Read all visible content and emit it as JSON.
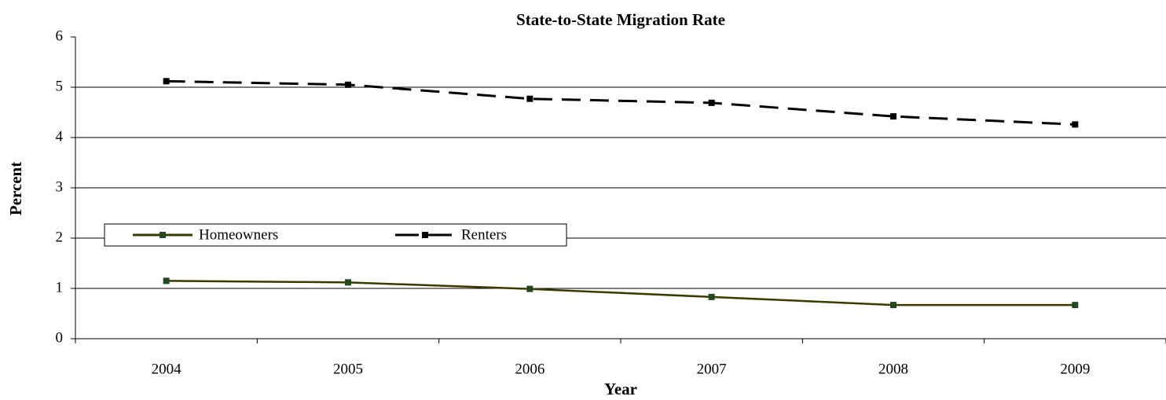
{
  "chart_data": {
    "type": "line",
    "title": "State-to-State Migration Rate",
    "x_label": "Year",
    "y_label": "Percent",
    "categories": [
      "2004",
      "2005",
      "2006",
      "2007",
      "2008",
      "2009"
    ],
    "series": [
      {
        "name": "Homeowners",
        "color": "#3a3a00",
        "marker_color": "#1f4a1f",
        "line_style": "solid",
        "values": [
          1.15,
          1.12,
          0.99,
          0.83,
          0.67,
          0.67
        ]
      },
      {
        "name": "Renters",
        "color": "#000000",
        "marker_color": "#000000",
        "line_style": "dashed",
        "values": [
          5.12,
          5.05,
          4.77,
          4.69,
          4.42,
          4.26
        ]
      }
    ],
    "ylim": [
      0,
      6
    ],
    "yticks": [
      0,
      1,
      2,
      3,
      4,
      5,
      6
    ],
    "grid": true,
    "legend": "left"
  }
}
